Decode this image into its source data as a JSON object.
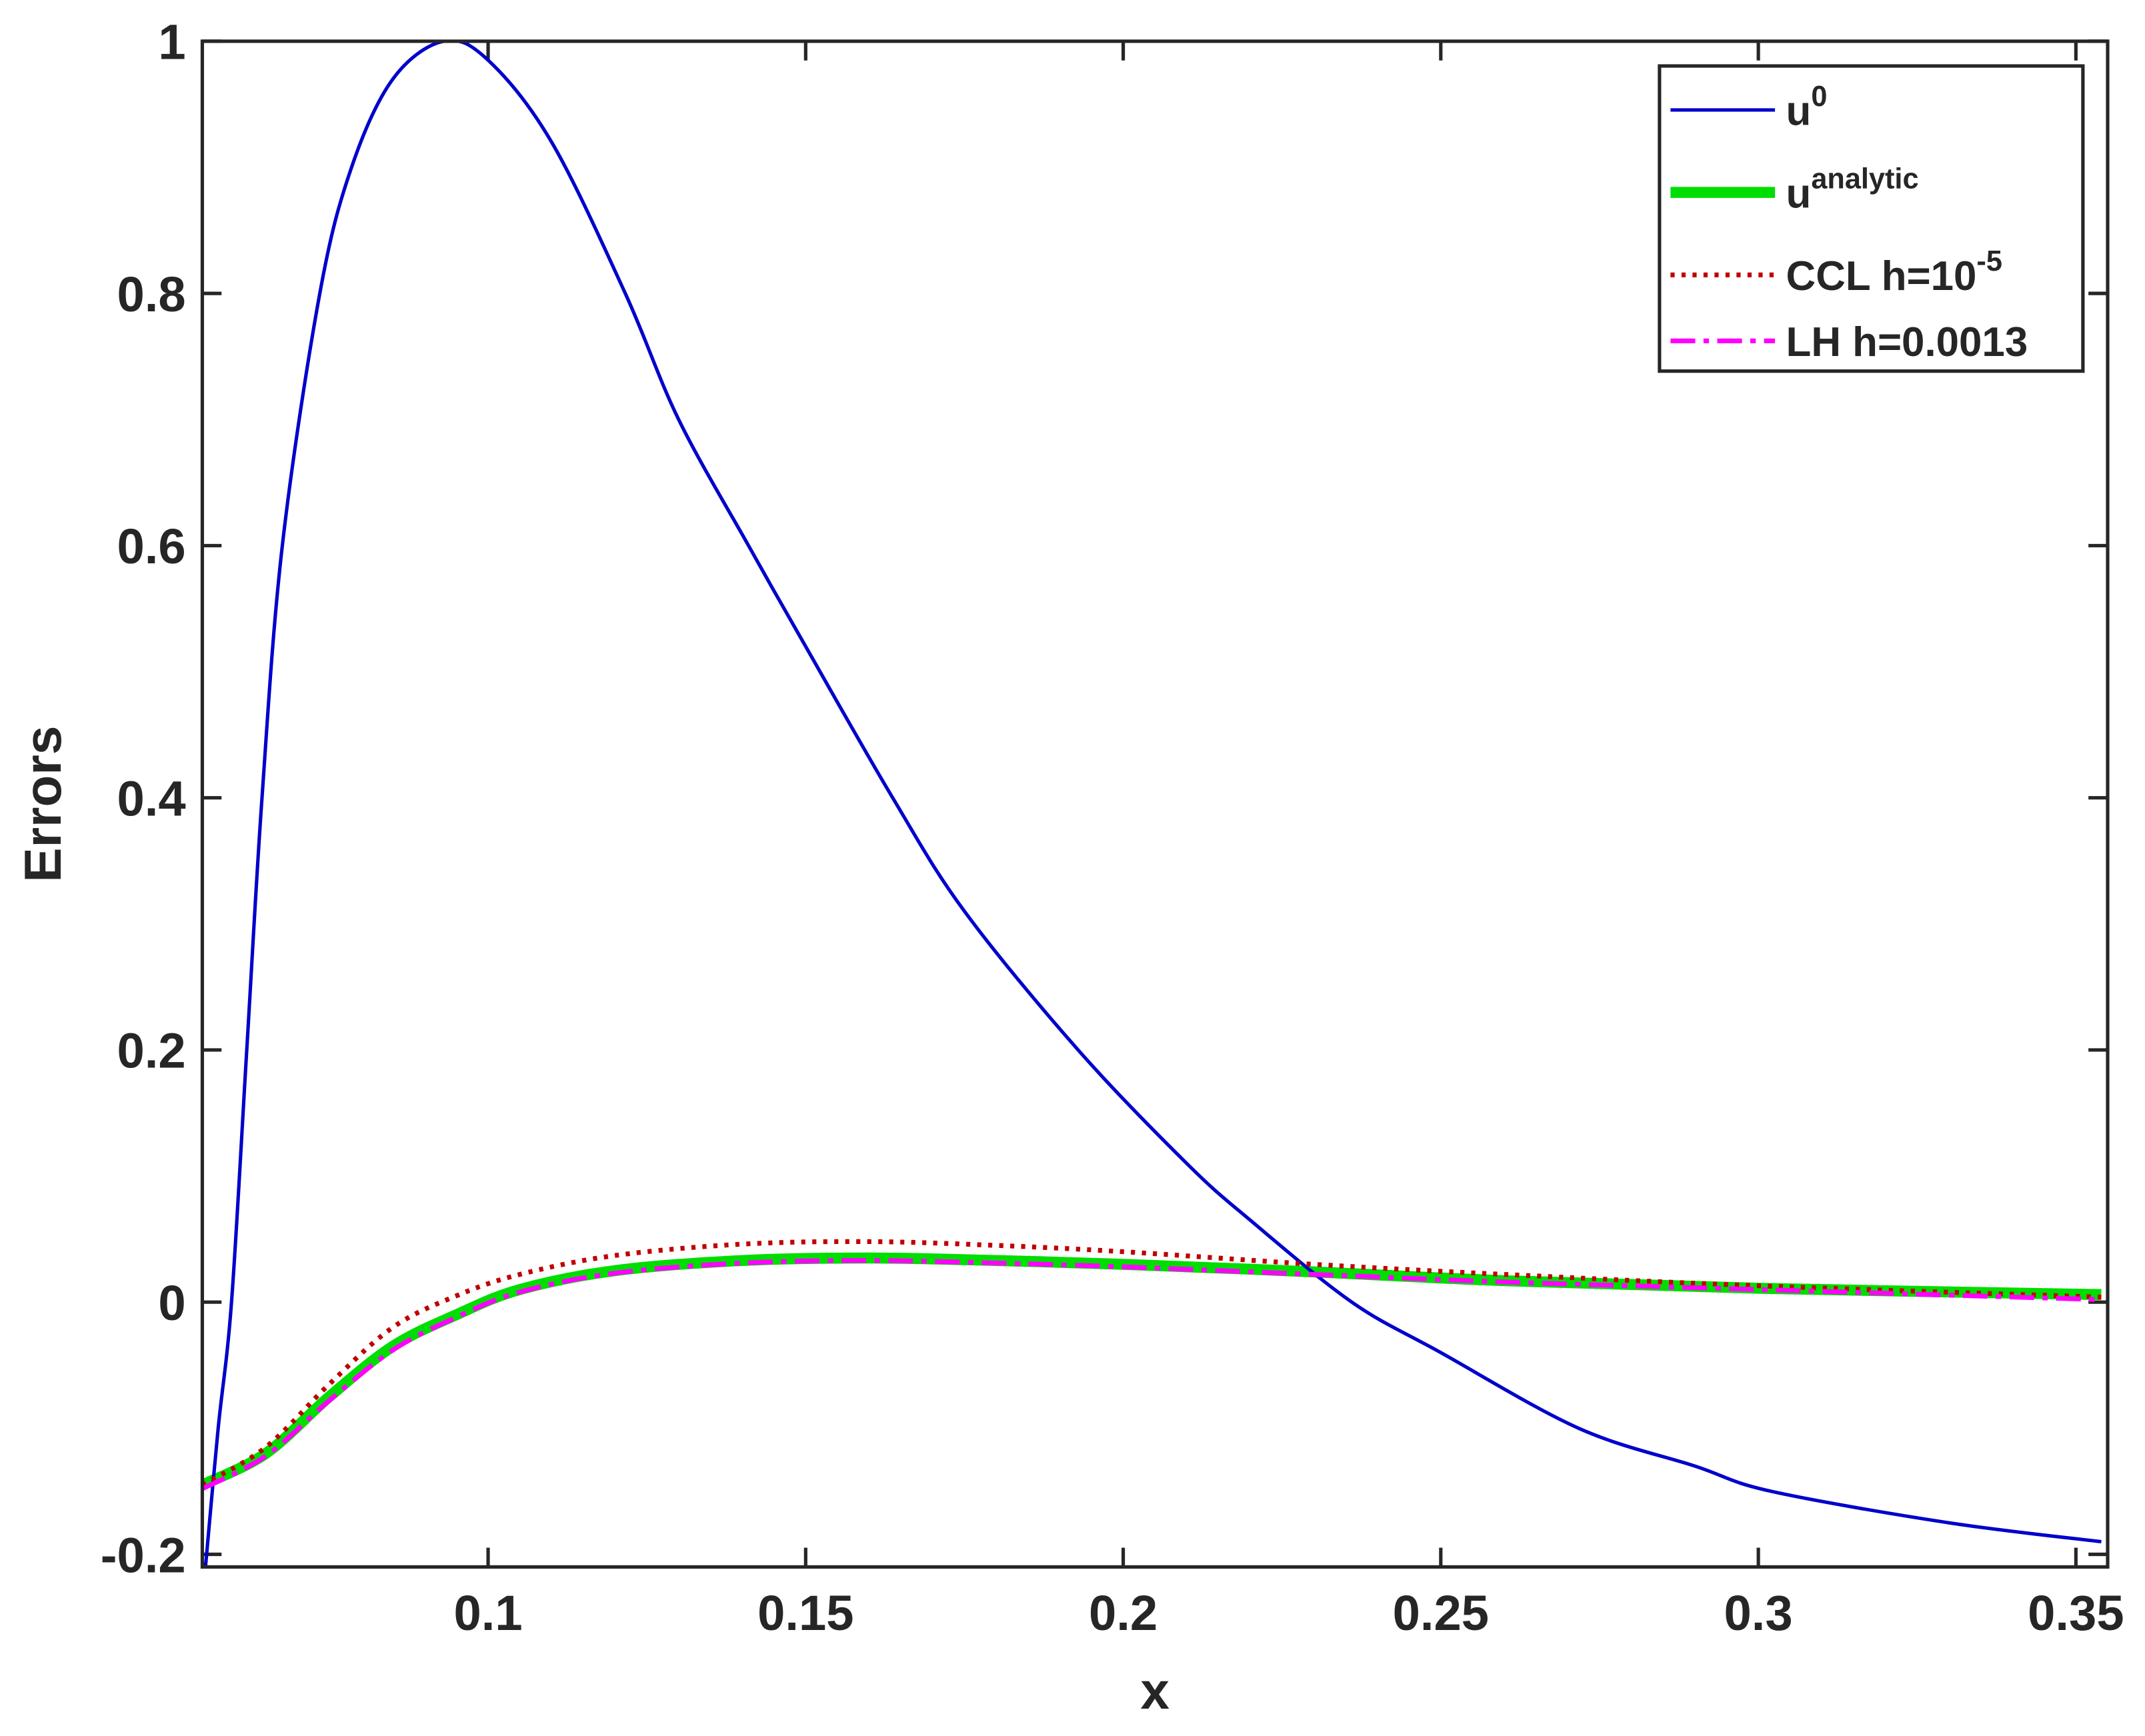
{
  "chart_data": {
    "type": "line",
    "xlabel": "x",
    "ylabel": "Errors",
    "xlim": [
      0.055,
      0.355
    ],
    "ylim": [
      -0.21,
      1
    ],
    "xticks": [
      0.1,
      0.15,
      0.2,
      0.25,
      0.3,
      0.35
    ],
    "yticks": [
      -0.2,
      0,
      0.2,
      0.4,
      0.6,
      0.8,
      1
    ],
    "legend": "upper right",
    "series": [
      {
        "name": "u",
        "superscript": "0",
        "color": "#0000cc",
        "style": "solid",
        "x": [
          0.0555,
          0.0575,
          0.0596,
          0.062,
          0.0644,
          0.0676,
          0.0735,
          0.0785,
          0.085,
          0.093,
          0.1,
          0.11,
          0.1216,
          0.13,
          0.141,
          0.15,
          0.1637,
          0.175,
          0.1929,
          0.21,
          0.22,
          0.236,
          0.25,
          0.2717,
          0.29,
          0.302,
          0.33,
          0.354
        ],
        "values": [
          -0.21,
          -0.1,
          0,
          0.2,
          0.4,
          0.6,
          0.8,
          0.9,
          0.97,
          1.0,
          0.985,
          0.92,
          0.8,
          0.7,
          0.6,
          0.52,
          0.4,
          0.31,
          0.2,
          0.11,
          0.065,
          0,
          -0.04,
          -0.1,
          -0.13,
          -0.15,
          -0.175,
          -0.19
        ]
      },
      {
        "name": "u",
        "superscript": "analytic",
        "color": "#00dd00",
        "style": "thick",
        "x": [
          0.055,
          0.065,
          0.075,
          0.085,
          0.095,
          0.105,
          0.12,
          0.14,
          0.16,
          0.18,
          0.2,
          0.23,
          0.26,
          0.3,
          0.354
        ],
        "values": [
          -0.145,
          -0.12,
          -0.075,
          -0.035,
          -0.01,
          0.01,
          0.025,
          0.033,
          0.035,
          0.033,
          0.03,
          0.024,
          0.017,
          0.011,
          0.006
        ]
      },
      {
        "name": "CCL h=10",
        "superscript": "-5",
        "color": "#c00000",
        "style": "dotted",
        "x": [
          0.055,
          0.065,
          0.075,
          0.085,
          0.095,
          0.105,
          0.12,
          0.14,
          0.16,
          0.18,
          0.2,
          0.23,
          0.26,
          0.3,
          0.354
        ],
        "values": [
          -0.145,
          -0.115,
          -0.065,
          -0.02,
          0.005,
          0.022,
          0.037,
          0.046,
          0.048,
          0.045,
          0.04,
          0.03,
          0.022,
          0.013,
          0.004
        ]
      },
      {
        "name": "LH h=0.0013",
        "color": "#ff00ff",
        "style": "dashdot",
        "x": [
          0.055,
          0.065,
          0.075,
          0.085,
          0.095,
          0.105,
          0.12,
          0.14,
          0.16,
          0.18,
          0.2,
          0.23,
          0.26,
          0.3,
          0.354
        ],
        "values": [
          -0.148,
          -0.122,
          -0.078,
          -0.038,
          -0.012,
          0.008,
          0.023,
          0.031,
          0.033,
          0.031,
          0.028,
          0.022,
          0.016,
          0.01,
          0.002
        ]
      }
    ]
  }
}
